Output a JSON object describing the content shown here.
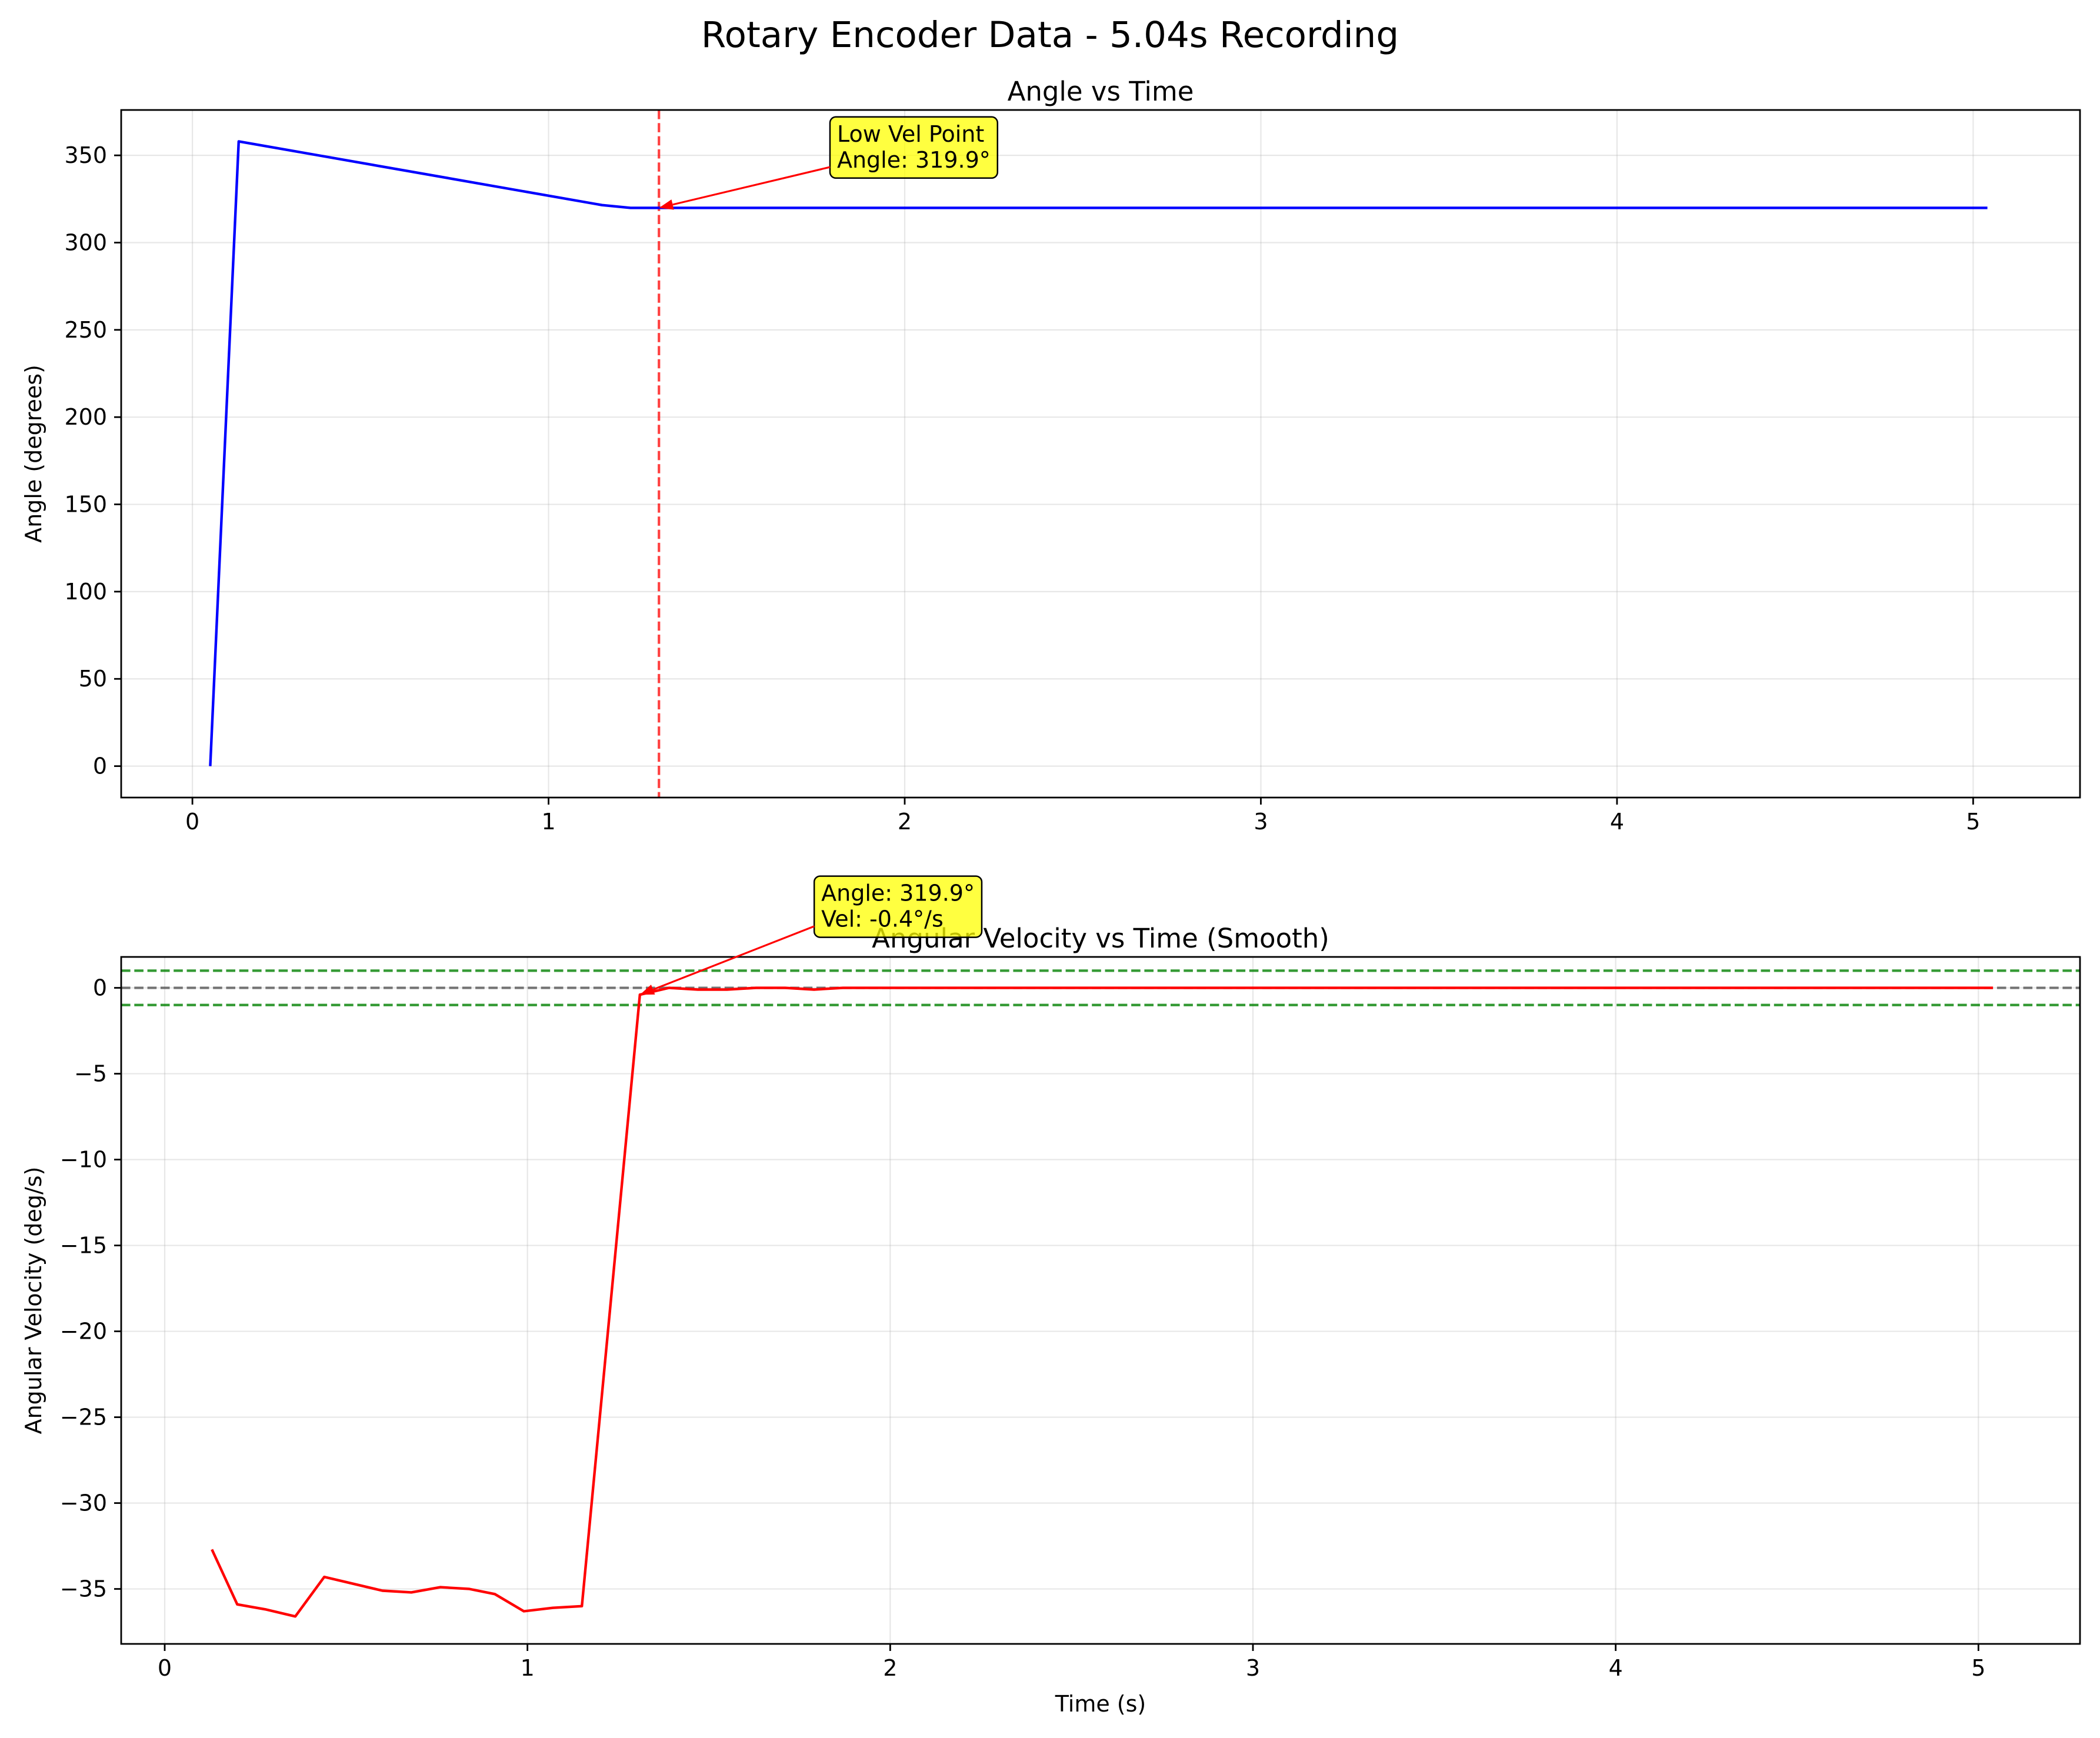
{
  "figure_title": "Rotary Encoder Data - 5.04s Recording",
  "chart_data": [
    {
      "type": "line",
      "title": "Angle vs Time",
      "xlabel": "",
      "ylabel": "Angle (degrees)",
      "xlim": [
        -0.2,
        5.3
      ],
      "ylim": [
        -18,
        376
      ],
      "xticks": [
        0,
        1,
        2,
        3,
        4,
        5
      ],
      "yticks": [
        0,
        50,
        100,
        150,
        200,
        250,
        300,
        350
      ],
      "grid": true,
      "series": [
        {
          "color": "#0000ff",
          "x": [
            0.05,
            0.13,
            1.15,
            1.23,
            5.04
          ],
          "y": [
            0.0,
            358.0,
            321.5,
            319.9,
            319.9
          ]
        }
      ],
      "vlines": [
        {
          "x": 1.31,
          "color": "#ff0000",
          "style": "dashed"
        }
      ],
      "hlines": [],
      "annotation": {
        "lines": [
          "Low Vel Point",
          "Angle: 319.9°"
        ],
        "point": [
          1.31,
          319.9
        ],
        "text_at": [
          1.81,
          370
        ],
        "box_color": "#ffff00",
        "arrow_color": "#ff0000"
      }
    },
    {
      "type": "line",
      "title": "Angular Velocity vs Time (Smooth)",
      "xlabel": "Time (s)",
      "ylabel": "Angular Velocity (deg/s)",
      "xlim": [
        -0.12,
        5.28
      ],
      "ylim": [
        -38.2,
        1.8
      ],
      "xticks": [
        0,
        1,
        2,
        3,
        4,
        5
      ],
      "yticks": [
        0,
        -5,
        -10,
        -15,
        -20,
        -25,
        -30,
        -35
      ],
      "grid": true,
      "series": [
        {
          "color": "#ff0000",
          "x": [
            0.13,
            0.2,
            0.28,
            0.36,
            0.44,
            0.52,
            0.6,
            0.68,
            0.76,
            0.84,
            0.91,
            0.99,
            1.07,
            1.15,
            1.31,
            1.39,
            1.47,
            1.55,
            1.63,
            1.71,
            1.79,
            1.87,
            1.95,
            5.04
          ],
          "y": [
            -32.7,
            -35.9,
            -36.2,
            -36.6,
            -34.3,
            -34.7,
            -35.1,
            -35.2,
            -34.9,
            -35.0,
            -35.3,
            -36.3,
            -36.1,
            -36.0,
            -0.4,
            0.0,
            -0.1,
            -0.1,
            0.0,
            0.0,
            -0.1,
            0.0,
            0.0,
            0.0
          ]
        }
      ],
      "vlines": [],
      "hlines": [
        {
          "y": 0,
          "color": "#555555",
          "style": "dashed"
        },
        {
          "y": 1,
          "color": "#008000",
          "style": "dashed"
        },
        {
          "y": -1,
          "color": "#008000",
          "style": "dashed"
        }
      ],
      "annotation": {
        "lines": [
          "Angle: 319.9°",
          "Vel: -0.4°/s"
        ],
        "point": [
          1.31,
          -0.4
        ],
        "text_at": [
          1.81,
          6.3
        ],
        "box_color": "#ffff00",
        "arrow_color": "#ff0000"
      }
    }
  ]
}
